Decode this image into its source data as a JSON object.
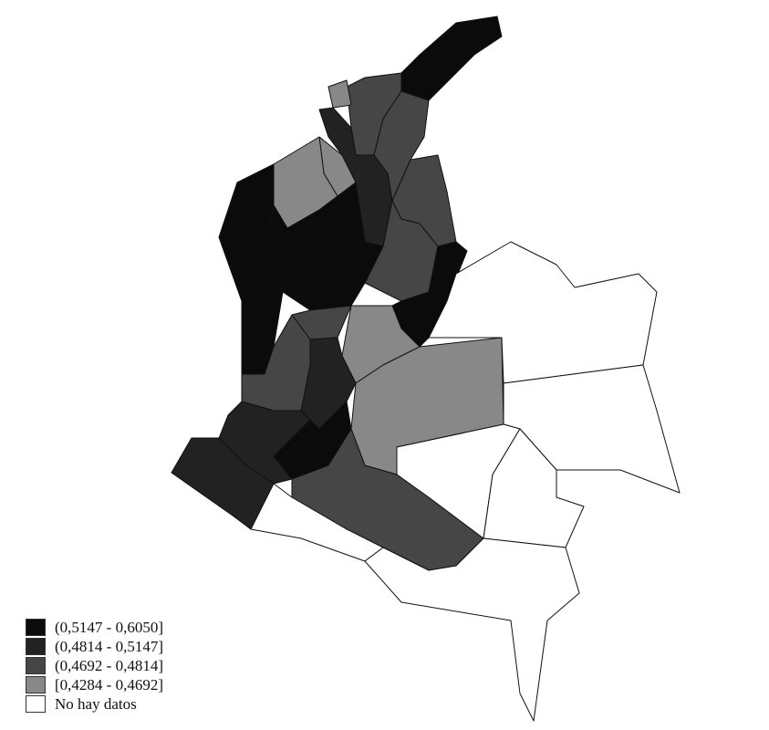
{
  "legend": {
    "items": [
      {
        "label": "(0,5147 - 0,6050]",
        "color": "#0b0b0b"
      },
      {
        "label": "(0,4814 - 0,5147]",
        "color": "#222222"
      },
      {
        "label": "(0,4692 - 0,4814]",
        "color": "#464646"
      },
      {
        "label": "[0,4284 - 0,4692]",
        "color": "#888888"
      },
      {
        "label": "No hay datos",
        "color": "#ffffff"
      }
    ]
  },
  "region_classes": [
    0,
    2,
    2,
    3,
    1,
    3,
    3,
    2,
    2,
    0,
    0,
    0,
    3,
    2,
    1,
    2,
    3,
    0,
    1,
    1,
    2,
    4,
    4,
    4,
    4,
    4,
    4
  ],
  "border_color": "#111111"
}
